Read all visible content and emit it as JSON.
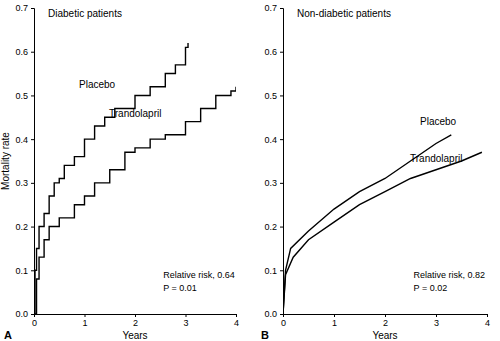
{
  "chart_data": [
    {
      "type": "line",
      "title": "Diabetic patients",
      "panel_label": "A",
      "y_label": "Mortality rate",
      "x_label": "Years",
      "xlim": [
        0,
        4
      ],
      "xticks": [
        0,
        1,
        2,
        3,
        4
      ],
      "ylim": [
        0,
        0.7
      ],
      "yticks": [
        {
          "value": 0,
          "label": "0.0"
        },
        0.1,
        0.2,
        0.3,
        0.4,
        0.5,
        0.6,
        0.7
      ],
      "annotations": [
        "Relative risk, 0.64",
        "P = 0.01"
      ],
      "series": [
        {
          "name": "Placebo",
          "color": "#000000",
          "line_style": "step",
          "x": [
            0,
            0.02,
            0.05,
            0.1,
            0.2,
            0.3,
            0.4,
            0.5,
            0.6,
            0.8,
            1.0,
            1.2,
            1.4,
            1.6,
            2.0,
            2.3,
            2.6,
            2.8,
            3.0,
            3.05
          ],
          "values": [
            0,
            0.1,
            0.15,
            0.2,
            0.23,
            0.27,
            0.3,
            0.31,
            0.34,
            0.36,
            0.4,
            0.43,
            0.45,
            0.47,
            0.5,
            0.52,
            0.55,
            0.57,
            0.61,
            0.62
          ]
        },
        {
          "name": "Trandolapril",
          "color": "#000000",
          "line_style": "step",
          "x": [
            0,
            0.05,
            0.1,
            0.2,
            0.3,
            0.5,
            0.8,
            1.0,
            1.2,
            1.5,
            1.8,
            2.0,
            2.3,
            2.6,
            3.0,
            3.3,
            3.6,
            3.9,
            4.0
          ],
          "values": [
            0,
            0.08,
            0.13,
            0.17,
            0.2,
            0.22,
            0.25,
            0.27,
            0.3,
            0.33,
            0.37,
            0.38,
            0.4,
            0.41,
            0.44,
            0.47,
            0.5,
            0.51,
            0.52
          ]
        }
      ]
    },
    {
      "type": "line",
      "title": "Non-diabetic patients",
      "panel_label": "B",
      "x_label": "Years",
      "xlim": [
        0,
        4
      ],
      "xticks": [
        0,
        1,
        2,
        3,
        4
      ],
      "ylim": [
        0,
        0.7
      ],
      "yticks": [
        {
          "value": 0,
          "label": "0.0"
        },
        0.1,
        0.2,
        0.3,
        0.4,
        0.5,
        0.6,
        0.7
      ],
      "annotations": [
        "Relative risk, 0.82",
        "P = 0.02"
      ],
      "series": [
        {
          "name": "Placebo",
          "color": "#000000",
          "line_style": "solid",
          "x": [
            0,
            0.05,
            0.15,
            0.5,
            1.0,
            1.5,
            2.0,
            2.5,
            3.0,
            3.3
          ],
          "values": [
            0,
            0.1,
            0.15,
            0.19,
            0.24,
            0.28,
            0.31,
            0.35,
            0.39,
            0.41
          ]
        },
        {
          "name": "Trandolapril",
          "color": "#000000",
          "line_style": "solid",
          "x": [
            0,
            0.05,
            0.2,
            0.5,
            1.0,
            1.5,
            2.0,
            2.5,
            3.0,
            3.5,
            3.9
          ],
          "values": [
            0,
            0.09,
            0.13,
            0.17,
            0.21,
            0.25,
            0.28,
            0.31,
            0.33,
            0.35,
            0.37
          ]
        }
      ]
    }
  ]
}
